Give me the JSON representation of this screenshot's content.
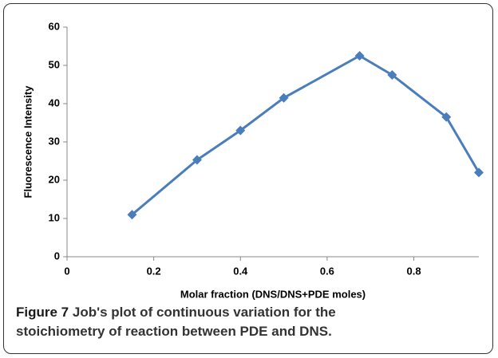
{
  "chart_data": {
    "type": "line",
    "y_label": "Fluorescence Intensity",
    "x_label": "Molar fraction (DNS/DNS+PDE moles)",
    "x": [
      0.15,
      0.3,
      0.4,
      0.5,
      0.675,
      0.75,
      0.875,
      0.95
    ],
    "series": [
      {
        "name": "Fluorescence Intensity",
        "color": "#4a7ebb",
        "values": [
          11,
          25.3,
          33,
          41.5,
          52.5,
          47.5,
          36.5,
          22
        ]
      }
    ],
    "xlim": [
      0,
      0.95
    ],
    "xticks": [
      0,
      0.2,
      0.4,
      0.6,
      0.8
    ],
    "ylim": [
      0,
      60
    ],
    "yticks": [
      0,
      10,
      20,
      30,
      40,
      50,
      60
    ],
    "grid": false
  },
  "caption": {
    "label": "Figure 7",
    "text": "Job's plot of continuous variation for the stoichiometry of reaction between PDE and DNS."
  }
}
